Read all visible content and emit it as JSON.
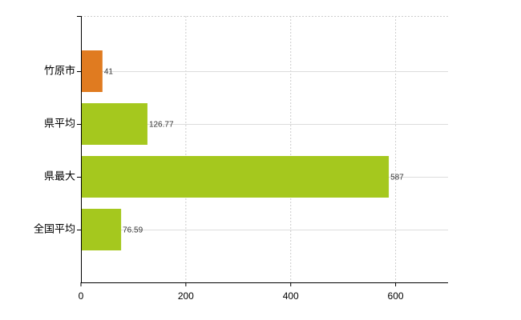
{
  "chart_data": {
    "type": "hbar",
    "categories": [
      "竹原市",
      "県平均",
      "県最大",
      "全国平均"
    ],
    "values": [
      41,
      126.77,
      587,
      76.59
    ],
    "colors": [
      "#e07b20",
      "#a5c81e",
      "#a5c81e",
      "#a5c81e"
    ],
    "xlim": [
      0,
      700
    ],
    "xticks": [
      0,
      200,
      400,
      600
    ],
    "grid": true
  }
}
